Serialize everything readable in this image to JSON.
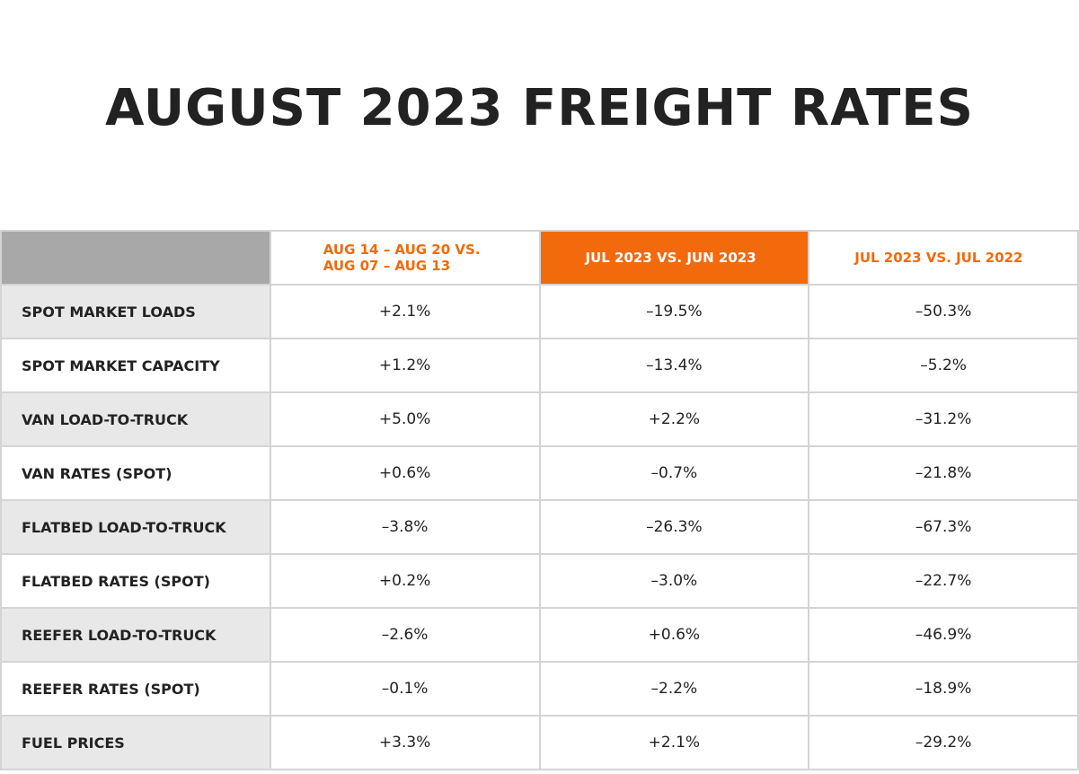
{
  "title": "AUGUST 2023 FREIGHT RATES",
  "table": {
    "header": [
      [
        "AUG 14 – AUG 20 VS.",
        "AUG 07 – AUG 13"
      ],
      "JUL 2023 VS. JUN 2023",
      "JUL 2023 VS. JUL 2022"
    ],
    "rows": [
      [
        "SPOT MARKET LOADS",
        "+2.1%",
        "–19.5%",
        "–50.3%"
      ],
      [
        "SPOT MARKET CAPACITY",
        "+1.2%",
        "–13.4%",
        "–5.2%"
      ],
      [
        "VAN LOAD-TO-TRUCK",
        "+5.0%",
        "+2.2%",
        "–31.2%"
      ],
      [
        "VAN RATES (SPOT)",
        "+0.6%",
        "–0.7%",
        "–21.8%"
      ],
      [
        "FLATBED LOAD-TO-TRUCK",
        "–3.8%",
        "–26.3%",
        "–67.3%"
      ],
      [
        "FLATBED RATES (SPOT)",
        "+0.2%",
        "–3.0%",
        "–22.7%"
      ],
      [
        "REEFER LOAD-TO-TRUCK",
        "–2.6%",
        "+0.6%",
        "–46.9%"
      ],
      [
        "REEFER RATES (SPOT)",
        "–0.1%",
        "–2.2%",
        "–18.9%"
      ],
      [
        "FUEL PRICES",
        "+3.3%",
        "+2.1%",
        "–29.2%"
      ]
    ]
  }
}
